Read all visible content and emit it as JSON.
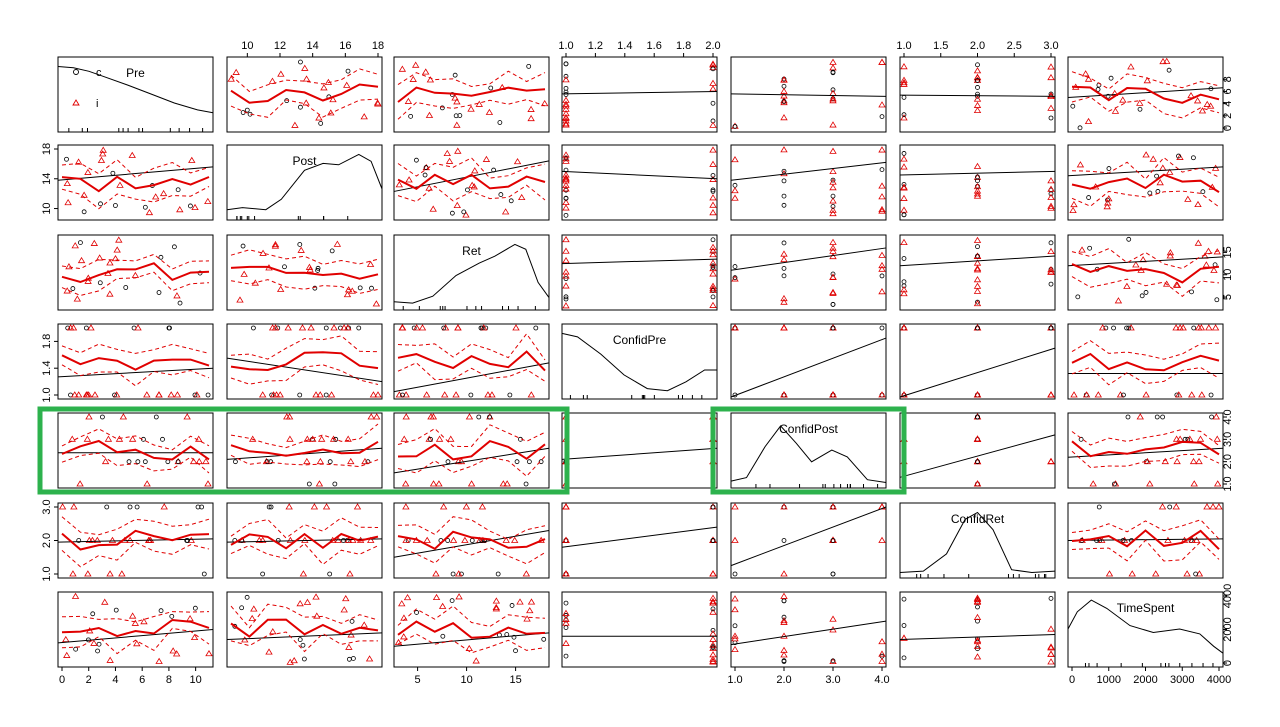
{
  "chart_data": {
    "type": "scatter",
    "variables": [
      "Pre",
      "Post",
      "Ret",
      "ConfidPre",
      "ConfidPost",
      "ConfidRet",
      "TimeSpent"
    ],
    "legend": {
      "entries": [
        {
          "label": "c",
          "marker": "circle",
          "color": "#000000"
        },
        {
          "label": "i",
          "marker": "triangle",
          "color": "#e00000"
        }
      ],
      "placement": "top-left"
    },
    "ranges": {
      "Pre": [
        0,
        11
      ],
      "Post": [
        9,
        18
      ],
      "Ret": [
        3,
        18
      ],
      "ConfidPre": [
        1,
        2
      ],
      "ConfidPost": [
        1,
        4
      ],
      "ConfidRet": [
        1,
        3
      ],
      "TimeSpent": [
        0,
        4000
      ]
    },
    "axis_ticks": {
      "Pre": [
        "0",
        "2",
        "4",
        "6",
        "8",
        "10"
      ],
      "Post": [
        "10",
        "12",
        "14",
        "16",
        "18"
      ],
      "Ret": [
        "5",
        "10",
        "15"
      ],
      "ConfidPre": [
        "1.0",
        "1.2",
        "1.4",
        "1.6",
        "1.8",
        "2.0"
      ],
      "ConfidPost": [
        "1.0",
        "2.0",
        "3.0",
        "4.0"
      ],
      "ConfidRet": [
        "1.0",
        "1.5",
        "2.0",
        "2.5",
        "3.0"
      ],
      "TimeSpent": [
        "0",
        "1000",
        "2000",
        "3000",
        "4000"
      ]
    },
    "side_ticks": {
      "Pre": [
        "0",
        "2",
        "4",
        "6",
        "8"
      ],
      "Post": [
        "10",
        "14",
        "18"
      ],
      "Ret": [
        "5",
        "10",
        "15"
      ],
      "ConfidPre": [
        "1.0",
        "1.4",
        "1.8"
      ],
      "ConfidPost": [
        "1.0",
        "2.0",
        "3.0",
        "4.0"
      ],
      "ConfidRet": [
        "1.0",
        "2.0",
        "3.0"
      ],
      "TimeSpent": [
        "0",
        "2000",
        "4000"
      ]
    },
    "density_curves": {
      "Pre": [
        [
          0,
          0.95
        ],
        [
          0.1,
          0.93
        ],
        [
          0.2,
          0.88
        ],
        [
          0.3,
          0.8
        ],
        [
          0.45,
          0.68
        ],
        [
          0.6,
          0.55
        ],
        [
          0.75,
          0.42
        ],
        [
          0.9,
          0.32
        ],
        [
          1,
          0.28
        ]
      ],
      "Post": [
        [
          0,
          0.15
        ],
        [
          0.1,
          0.18
        ],
        [
          0.25,
          0.15
        ],
        [
          0.35,
          0.3
        ],
        [
          0.5,
          0.72
        ],
        [
          0.62,
          0.82
        ],
        [
          0.72,
          0.8
        ],
        [
          0.85,
          0.95
        ],
        [
          0.93,
          0.85
        ],
        [
          1,
          0.45
        ]
      ],
      "Ret": [
        [
          0,
          0.12
        ],
        [
          0.12,
          0.1
        ],
        [
          0.25,
          0.2
        ],
        [
          0.4,
          0.5
        ],
        [
          0.55,
          0.68
        ],
        [
          0.65,
          0.78
        ],
        [
          0.78,
          0.95
        ],
        [
          0.85,
          0.88
        ],
        [
          0.93,
          0.4
        ],
        [
          1,
          0.18
        ]
      ],
      "ConfidPre": [
        [
          0,
          0.95
        ],
        [
          0.1,
          0.9
        ],
        [
          0.25,
          0.65
        ],
        [
          0.4,
          0.35
        ],
        [
          0.55,
          0.15
        ],
        [
          0.68,
          0.12
        ],
        [
          0.8,
          0.25
        ],
        [
          0.92,
          0.42
        ],
        [
          1,
          0.42
        ]
      ],
      "ConfidPost": [
        [
          0,
          0.1
        ],
        [
          0.1,
          0.15
        ],
        [
          0.22,
          0.6
        ],
        [
          0.32,
          0.9
        ],
        [
          0.42,
          0.65
        ],
        [
          0.52,
          0.38
        ],
        [
          0.65,
          0.55
        ],
        [
          0.75,
          0.45
        ],
        [
          0.88,
          0.12
        ],
        [
          1,
          0.08
        ]
      ],
      "ConfidRet": [
        [
          0,
          0.08
        ],
        [
          0.15,
          0.1
        ],
        [
          0.3,
          0.35
        ],
        [
          0.42,
          0.85
        ],
        [
          0.5,
          0.95
        ],
        [
          0.6,
          0.7
        ],
        [
          0.72,
          0.12
        ],
        [
          0.85,
          0.08
        ],
        [
          1,
          0.1
        ]
      ],
      "TimeSpent": [
        [
          0,
          0.55
        ],
        [
          0.06,
          0.8
        ],
        [
          0.15,
          0.97
        ],
        [
          0.25,
          0.85
        ],
        [
          0.4,
          0.6
        ],
        [
          0.55,
          0.5
        ],
        [
          0.72,
          0.55
        ],
        [
          0.85,
          0.48
        ],
        [
          0.94,
          0.3
        ],
        [
          1,
          0.2
        ]
      ]
    },
    "cells": [
      {
        "row": 0,
        "col": 3,
        "trend": [
          5.6,
          6.0
        ]
      },
      {
        "row": 0,
        "col": 4,
        "trend": [
          5.6,
          5.2
        ]
      },
      {
        "row": 0,
        "col": 5,
        "trend": [
          5.4,
          5.2
        ]
      },
      {
        "row": 0,
        "col": 6,
        "trend": [
          5.0,
          6.6
        ]
      },
      {
        "row": 1,
        "col": 0,
        "trend": [
          13.8,
          15.6
        ]
      },
      {
        "row": 1,
        "col": 2,
        "trend": [
          12.3,
          16.4
        ]
      },
      {
        "row": 1,
        "col": 3,
        "trend": [
          15.0,
          14.0
        ]
      },
      {
        "row": 1,
        "col": 4,
        "trend": [
          13.8,
          16.2
        ]
      },
      {
        "row": 1,
        "col": 5,
        "trend": [
          14.5,
          15.0
        ]
      },
      {
        "row": 1,
        "col": 6,
        "trend": [
          14.4,
          15.6
        ]
      },
      {
        "row": 2,
        "col": 3,
        "trend": [
          12.5,
          13.5
        ]
      },
      {
        "row": 2,
        "col": 4,
        "trend": [
          11.0,
          16.0
        ]
      },
      {
        "row": 2,
        "col": 5,
        "trend": [
          12.0,
          14.2
        ]
      },
      {
        "row": 2,
        "col": 6,
        "trend": [
          12.0,
          14.0
        ]
      },
      {
        "row": 3,
        "col": 0,
        "trend": [
          1.27,
          1.4
        ]
      },
      {
        "row": 3,
        "col": 1,
        "trend": [
          1.55,
          1.2
        ]
      },
      {
        "row": 3,
        "col": 2,
        "trend": [
          1.05,
          1.48
        ]
      },
      {
        "row": 3,
        "col": 4,
        "trend": [
          0.97,
          1.85
        ]
      },
      {
        "row": 3,
        "col": 5,
        "trend": [
          0.97,
          1.7
        ]
      },
      {
        "row": 3,
        "col": 6,
        "trend": [
          1.32,
          1.32
        ]
      },
      {
        "row": 4,
        "col": 0,
        "trend": [
          2.4,
          2.4
        ]
      },
      {
        "row": 4,
        "col": 1,
        "trend": [
          2.1,
          2.6
        ]
      },
      {
        "row": 4,
        "col": 2,
        "trend": [
          1.5,
          2.6
        ]
      },
      {
        "row": 4,
        "col": 3,
        "trend": [
          2.1,
          2.6
        ]
      },
      {
        "row": 4,
        "col": 5,
        "trend": [
          1.3,
          3.2
        ]
      },
      {
        "row": 4,
        "col": 6,
        "trend": [
          2.2,
          2.6
        ]
      },
      {
        "row": 5,
        "col": 0,
        "trend": [
          1.95,
          2.05
        ]
      },
      {
        "row": 5,
        "col": 1,
        "trend": [
          1.95,
          2.05
        ]
      },
      {
        "row": 5,
        "col": 2,
        "trend": [
          1.5,
          2.3
        ]
      },
      {
        "row": 5,
        "col": 3,
        "trend": [
          1.8,
          2.4
        ]
      },
      {
        "row": 5,
        "col": 4,
        "trend": [
          1.25,
          3.0
        ]
      },
      {
        "row": 5,
        "col": 6,
        "trend": [
          2.0,
          2.05
        ]
      },
      {
        "row": 6,
        "col": 0,
        "trend": [
          1200,
          2000
        ]
      },
      {
        "row": 6,
        "col": 1,
        "trend": [
          1400,
          1800
        ]
      },
      {
        "row": 6,
        "col": 2,
        "trend": [
          1000,
          1800
        ]
      },
      {
        "row": 6,
        "col": 3,
        "trend": [
          1600,
          1600
        ]
      },
      {
        "row": 6,
        "col": 4,
        "trend": [
          1100,
          2500
        ]
      },
      {
        "row": 6,
        "col": 5,
        "trend": [
          1400,
          1700
        ]
      }
    ],
    "highlights": [
      {
        "row": 4,
        "cols": [
          0,
          2
        ],
        "color": "#2db24d"
      },
      {
        "row": 4,
        "cols": [
          4,
          4
        ],
        "color": "#2db24d"
      }
    ],
    "grid": false
  }
}
